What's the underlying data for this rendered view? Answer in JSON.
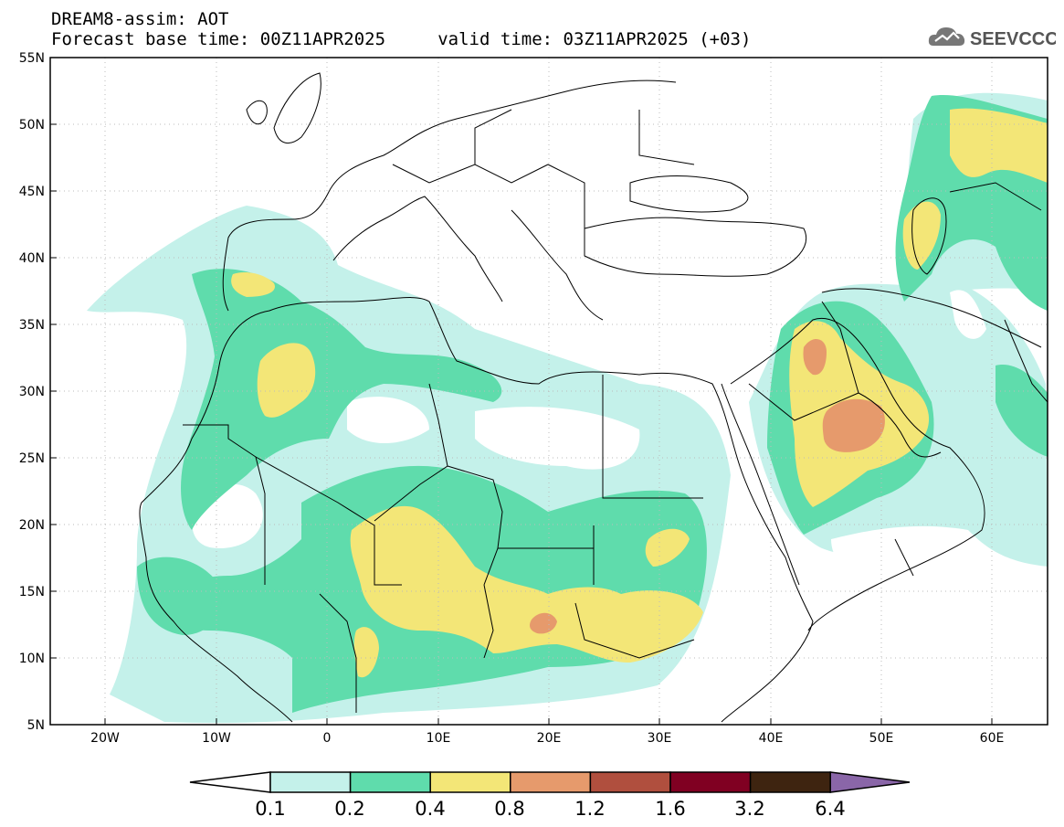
{
  "header": {
    "line1": "DREAM8-assim: AOT",
    "line2": "Forecast base time: 00Z11APR2025     valid time: 03Z11APR2025 (+03)"
  },
  "logo": {
    "text": "SEEVCCC",
    "icon": "cloud-icon"
  },
  "axes": {
    "lon_ticks": [
      "20W",
      "10W",
      "0",
      "10E",
      "20E",
      "30E",
      "40E",
      "50E",
      "60E"
    ],
    "lat_ticks": [
      "55N",
      "50N",
      "45N",
      "40N",
      "35N",
      "30N",
      "25N",
      "20N",
      "15N",
      "10N",
      "5N"
    ],
    "lon_range": [
      -25,
      65
    ],
    "lat_range": [
      5,
      55
    ]
  },
  "colorbar": {
    "labels": [
      "0.1",
      "0.2",
      "0.4",
      "0.8",
      "1.2",
      "1.6",
      "3.2",
      "6.4"
    ],
    "colors": [
      "#ffffff",
      "#c4f1ea",
      "#5fdcac",
      "#f3e677",
      "#e69a6c",
      "#b04f3e",
      "#800022",
      "#3e2410",
      "#8a66a8"
    ]
  }
}
